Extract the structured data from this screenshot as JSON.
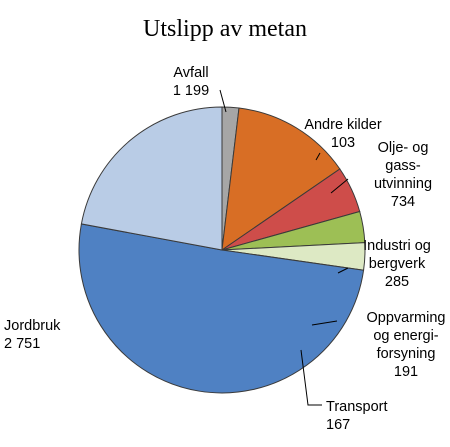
{
  "chart_data": {
    "type": "pie",
    "title": "Utslipp av metan",
    "start_angle_deg": 0,
    "direction": "clockwise",
    "slices": [
      {
        "name": "Andre kilder",
        "label_lines": [
          "Andre kilder"
        ],
        "value_label": "103",
        "value": 103,
        "color": "#a6a6a6"
      },
      {
        "name": "Olje- og gassutvinning",
        "label_lines": [
          "Olje- og",
          "gass-",
          "utvinning"
        ],
        "value_label": "734",
        "value": 734,
        "color": "#d86e25"
      },
      {
        "name": "Industri og bergverk",
        "label_lines": [
          "Industri og",
          "bergverk"
        ],
        "value_label": "285",
        "value": 285,
        "color": "#ce4d4a"
      },
      {
        "name": "Oppvarming og energiforsyning",
        "label_lines": [
          "Oppvarming",
          "og energi-",
          "forsyning"
        ],
        "value_label": "191",
        "value": 191,
        "color": "#9dbf55"
      },
      {
        "name": "Transport",
        "label_lines": [
          "Transport"
        ],
        "value_label": "167",
        "value": 167,
        "color": "#dde9c4"
      },
      {
        "name": "Jordbruk",
        "label_lines": [
          "Jordbruk"
        ],
        "value_label": "2 751",
        "value": 2751,
        "color": "#4f81c3"
      },
      {
        "name": "Avfall",
        "label_lines": [
          "Avfall"
        ],
        "value_label": "1 199",
        "value": 1199,
        "color": "#b9cce6"
      }
    ]
  }
}
